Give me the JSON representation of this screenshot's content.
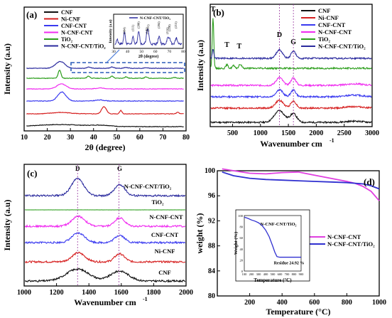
{
  "colors": {
    "cnf": "#111111",
    "ni_cnf": "#d62020",
    "cnf_cnt": "#3a3af0",
    "n_cnf_cnt": "#f02cf0",
    "tio2": "#2a9d1a",
    "n_cnf_cnt_tio2": "#2b2b9e",
    "d_n_cnf_cnt": "#e040e0",
    "d_n_cnf_cnt_tio2": "#3030d0",
    "guide": "#9a3aa0"
  },
  "chart_data": [
    {
      "type": "line",
      "panel_label": "(a)",
      "xlabel": "2θ (degree)",
      "ylabel": "Intensity (a.u)",
      "xlim": [
        10,
        80
      ],
      "xticks": [
        10,
        20,
        30,
        40,
        50,
        60,
        70,
        80
      ],
      "legend": [
        "CNF",
        "Ni-CNF",
        "CNF-CNT",
        "N-CNF-CNT",
        "TiO₂",
        "N-CNF-CNT/TiO₂"
      ],
      "series": [
        {
          "name": "CNF",
          "offset": 0,
          "peaks": [
            [
              25.5,
              10,
              0.9
            ],
            [
              43.5,
              4,
              0.5
            ]
          ]
        },
        {
          "name": "Ni-CNF",
          "offset": 1,
          "peaks": [
            [
              26,
              4,
              0.6
            ],
            [
              44.5,
              1,
              3.2
            ],
            [
              51.8,
              0.5,
              1.5
            ],
            [
              76.4,
              0.5,
              0.7
            ]
          ]
        },
        {
          "name": "CNF-CNT",
          "offset": 2,
          "peaks": [
            [
              26.3,
              1.8,
              3.6
            ],
            [
              42.8,
              2,
              0.4
            ]
          ]
        },
        {
          "name": "N-CNF-CNT",
          "offset": 3,
          "peaks": [
            [
              26.2,
              2,
              2.2
            ],
            [
              43,
              2,
              0.4
            ]
          ]
        },
        {
          "name": "TiO₂",
          "offset": 4,
          "peaks": [
            [
              25.3,
              0.6,
              3.4
            ],
            [
              37.8,
              0.6,
              0.9
            ],
            [
              48,
              0.6,
              0.9
            ],
            [
              54,
              0.6,
              0.6
            ],
            [
              62.7,
              0.6,
              0.5
            ],
            [
              75,
              0.6,
              0.3
            ]
          ]
        },
        {
          "name": "N-CNF-CNT/TiO₂",
          "offset": 5,
          "peaks": [
            [
              25.6,
              2,
              3.2
            ],
            [
              37.9,
              0.8,
              0.6
            ],
            [
              48,
              0.8,
              0.6
            ],
            [
              54,
              0.8,
              0.4
            ],
            [
              62.7,
              0.8,
              0.3
            ]
          ]
        }
      ],
      "inset": {
        "legend": "N-CNF-CNT/TiO₂",
        "xlabel": "2θ (degree)",
        "ylabel": "Intensity (a.u)",
        "xlim": [
          30,
          80
        ],
        "xticks": [
          30,
          40,
          50,
          60,
          70,
          80
        ],
        "peaks": [
          [
            32.5,
            0.6,
            0.25
          ],
          [
            37.8,
            0.6,
            0.7
          ],
          [
            44,
            0.6,
            0.45
          ],
          [
            48,
            0.7,
            0.75
          ],
          [
            54,
            0.7,
            0.55
          ],
          [
            55,
            0.7,
            0.5
          ],
          [
            62.7,
            0.7,
            0.45
          ],
          [
            68.8,
            0.7,
            0.3
          ],
          [
            70.3,
            0.7,
            0.3
          ],
          [
            75,
            0.7,
            0.35
          ]
        ],
        "annotations": [
          "(004)",
          "(111)",
          "(200)",
          "(105)",
          "(211)",
          "(204)",
          "(116)",
          "(220)",
          "(215)"
        ]
      }
    },
    {
      "type": "line",
      "panel_label": "(b)",
      "xlabel": "Wavenumber cm",
      "xlabel_sup": "-1",
      "ylabel": "Intensity (a.u)",
      "xlim": [
        100,
        3000
      ],
      "xticks": [
        500,
        1000,
        1500,
        2000,
        2500,
        3000
      ],
      "vlines": [
        1340,
        1590
      ],
      "peak_labels": [
        {
          "text": "T",
          "x": 150
        },
        {
          "text": "T",
          "x": 400
        },
        {
          "text": "T",
          "x": 620
        },
        {
          "text": "D",
          "x": 1340
        },
        {
          "text": "G",
          "x": 1590
        }
      ],
      "legend": [
        "CNF",
        "Ni-CNF",
        "CNF-CNT",
        "N-CNF-CNT",
        "TiO₂",
        "N-CNF-CNT/TiO₂"
      ],
      "series": [
        {
          "name": "CNF",
          "offset": 0,
          "peaks": [
            [
              1340,
              90,
              1.5
            ],
            [
              1590,
              60,
              1.1
            ],
            [
              2680,
              150,
              0.15
            ]
          ]
        },
        {
          "name": "Ni-CNF",
          "offset": 1,
          "peaks": [
            [
              1340,
              70,
              1.0
            ],
            [
              1590,
              50,
              0.9
            ],
            [
              2680,
              150,
              0.2
            ]
          ]
        },
        {
          "name": "CNF-CNT",
          "offset": 2,
          "peaks": [
            [
              1340,
              60,
              0.9
            ],
            [
              1590,
              45,
              0.85
            ],
            [
              2680,
              150,
              0.2
            ]
          ]
        },
        {
          "name": "N-CNF-CNT",
          "offset": 3,
          "peaks": [
            [
              1340,
              60,
              1.0
            ],
            [
              1590,
              45,
              0.95
            ],
            [
              2680,
              150,
              0.2
            ]
          ]
        },
        {
          "name": "TiO₂",
          "offset": 4,
          "peaks": [
            [
              150,
              14,
              6.5
            ],
            [
              400,
              20,
              0.45
            ],
            [
              515,
              20,
              0.35
            ],
            [
              640,
              25,
              0.5
            ]
          ]
        },
        {
          "name": "N-CNF-CNT/TiO₂",
          "offset": 5,
          "peaks": [
            [
              150,
              14,
              1.2
            ],
            [
              1340,
              55,
              1.1
            ],
            [
              1590,
              40,
              0.95
            ]
          ]
        }
      ]
    },
    {
      "type": "line",
      "panel_label": "(c)",
      "xlabel": "Wavenumber cm",
      "xlabel_sup": "-1",
      "ylabel": "Intensity (a.u)",
      "xlim": [
        1000,
        2000
      ],
      "xticks": [
        1000,
        1200,
        1400,
        1600,
        1800,
        2000
      ],
      "vlines": [
        1330,
        1585
      ],
      "peak_labels": [
        {
          "text": "D",
          "x": 1330
        },
        {
          "text": "G",
          "x": 1590
        }
      ],
      "series": [
        {
          "name": "CNF",
          "label": "CNF",
          "offset": 0,
          "peaks": [
            [
              1330,
              70,
              1.2
            ],
            [
              1590,
              55,
              1.0
            ]
          ]
        },
        {
          "name": "Ni-CNF",
          "label": "Ni-CNF",
          "offset": 1,
          "peaks": [
            [
              1335,
              40,
              0.9
            ],
            [
              1590,
              30,
              0.8
            ]
          ]
        },
        {
          "name": "CNF-CNT",
          "label": "CNF-CNT",
          "offset": 2,
          "peaks": [
            [
              1335,
              40,
              0.95
            ],
            [
              1590,
              30,
              0.75
            ]
          ]
        },
        {
          "name": "N-CNF-CNT",
          "label": "N-CNF-CNT",
          "offset": 3,
          "peaks": [
            [
              1335,
              40,
              1.0
            ],
            [
              1590,
              30,
              0.85
            ]
          ]
        },
        {
          "name": "TiO₂",
          "label": "TiO₂",
          "offset": 4,
          "peaks": []
        },
        {
          "name": "N-CNF-CNT/TiO₂",
          "label": "N-CNF-CNT/TiO₂",
          "offset": 5,
          "peaks": [
            [
              1330,
              38,
              1.7
            ],
            [
              1590,
              32,
              1.1
            ]
          ]
        }
      ]
    },
    {
      "type": "line",
      "panel_label": "(d)",
      "xlabel": "Temperature (°C)",
      "ylabel": "weight (%)",
      "xlim": [
        0,
        1000
      ],
      "ylim": [
        80,
        100
      ],
      "xticks": [
        200,
        400,
        600,
        800,
        1000
      ],
      "yticks": [
        80,
        84,
        88,
        92,
        96,
        100
      ],
      "legend": [
        "N-CNF-CNT",
        "N-CNF-CNT/TiO₂"
      ],
      "series": [
        {
          "name": "N-CNF-CNT",
          "x": [
            30,
            100,
            200,
            300,
            400,
            500,
            600,
            700,
            800,
            850,
            900,
            950,
            1000
          ],
          "y": [
            100.3,
            100.0,
            99.6,
            99.5,
            99.7,
            99.8,
            99.3,
            98.8,
            98.3,
            98.0,
            97.5,
            96.7,
            95.2
          ]
        },
        {
          "name": "N-CNF-CNT/TiO₂",
          "x": [
            30,
            100,
            200,
            300,
            400,
            500,
            600,
            700,
            800,
            850,
            900,
            950,
            1000
          ],
          "y": [
            99.8,
            99.2,
            98.8,
            98.6,
            98.5,
            98.4,
            98.3,
            98.2,
            98.1,
            98.0,
            97.9,
            97.6,
            97.1
          ]
        }
      ],
      "inset": {
        "title": "N-CNF-CNT/TiO₂",
        "xlabel": "Temperature (°C)",
        "ylabel": "Weight (%)",
        "xlim": [
          100,
          900
        ],
        "ylim": [
          0,
          100
        ],
        "xticks": [
          100,
          200,
          300,
          400,
          500,
          600,
          700,
          800,
          900
        ],
        "yticks": [
          0,
          20,
          40,
          60,
          80,
          100
        ],
        "x": [
          100,
          150,
          200,
          250,
          300,
          350,
          400,
          450,
          500,
          530,
          560,
          600
        ],
        "y": [
          97,
          95,
          92,
          90,
          87,
          82,
          74,
          62,
          45,
          34,
          26,
          24.92
        ],
        "annotation": "Residue 24.92 %"
      }
    }
  ]
}
